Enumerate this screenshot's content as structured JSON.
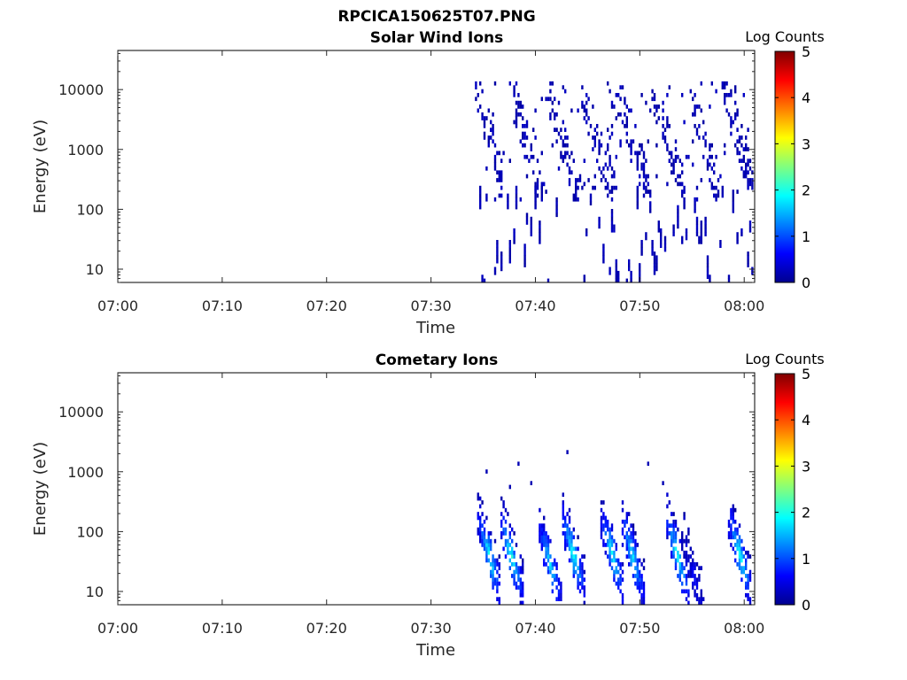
{
  "figure": {
    "title": "RPCICA150625T07.PNG"
  },
  "colormap": {
    "stops": [
      "#00008f",
      "#0000ff",
      "#00ffff",
      "#ffff00",
      "#ff0000",
      "#800000"
    ]
  },
  "chart_data": [
    {
      "type": "heatmap",
      "title": "Solar Wind Ions",
      "xlabel": "Time",
      "ylabel": "Energy (eV)",
      "x_ticks": [
        "07:00",
        "07:10",
        "07:20",
        "07:30",
        "07:40",
        "07:50",
        "08:00"
      ],
      "x_tick_minutes": [
        0,
        10,
        20,
        30,
        40,
        50,
        60
      ],
      "xlim_minutes": [
        0,
        61
      ],
      "y_scale": "log",
      "ylim": [
        6,
        45000
      ],
      "y_ticks": [
        "10",
        "100",
        "1000",
        "10000"
      ],
      "y_tick_values": [
        10,
        100,
        1000,
        10000
      ],
      "colorbar": {
        "label": "Log Counts",
        "range": [
          0,
          5
        ],
        "ticks": [
          "0",
          "1",
          "2",
          "3",
          "4",
          "5"
        ]
      },
      "data_start_minute": 34,
      "scan_period_minutes": 3.4,
      "intensity_log_counts": [
        0,
        0.3
      ],
      "high_energy_range_eV": [
        150,
        12000
      ],
      "low_energy_range_eV": [
        6,
        250
      ]
    },
    {
      "type": "heatmap",
      "title": "Cometary Ions",
      "xlabel": "Time",
      "ylabel": "Energy (eV)",
      "x_ticks": [
        "07:00",
        "07:10",
        "07:20",
        "07:30",
        "07:40",
        "07:50",
        "08:00"
      ],
      "x_tick_minutes": [
        0,
        10,
        20,
        30,
        40,
        50,
        60
      ],
      "xlim_minutes": [
        0,
        61
      ],
      "y_scale": "log",
      "ylim": [
        6,
        45000
      ],
      "y_ticks": [
        "10",
        "100",
        "1000",
        "10000"
      ],
      "y_tick_values": [
        10,
        100,
        1000,
        10000
      ],
      "colorbar": {
        "label": "Log Counts",
        "range": [
          0,
          5
        ],
        "ticks": [
          "0",
          "1",
          "2",
          "3",
          "4",
          "5"
        ]
      },
      "data_start_minute": 34,
      "burst_center_minutes": [
        35.5,
        37.6,
        41.3,
        43.5,
        47.3,
        49.2,
        53.5,
        55.0,
        59.5
      ],
      "burst_peak_energy_eV": [
        40,
        40,
        30,
        45,
        40,
        40,
        40,
        20,
        40
      ],
      "burst_peak_log_counts": [
        1.8,
        1.9,
        1.6,
        1.9,
        1.8,
        1.7,
        1.9,
        0.4,
        1.9
      ],
      "sparse_high_energy_eV": [
        300,
        2500
      ]
    }
  ]
}
